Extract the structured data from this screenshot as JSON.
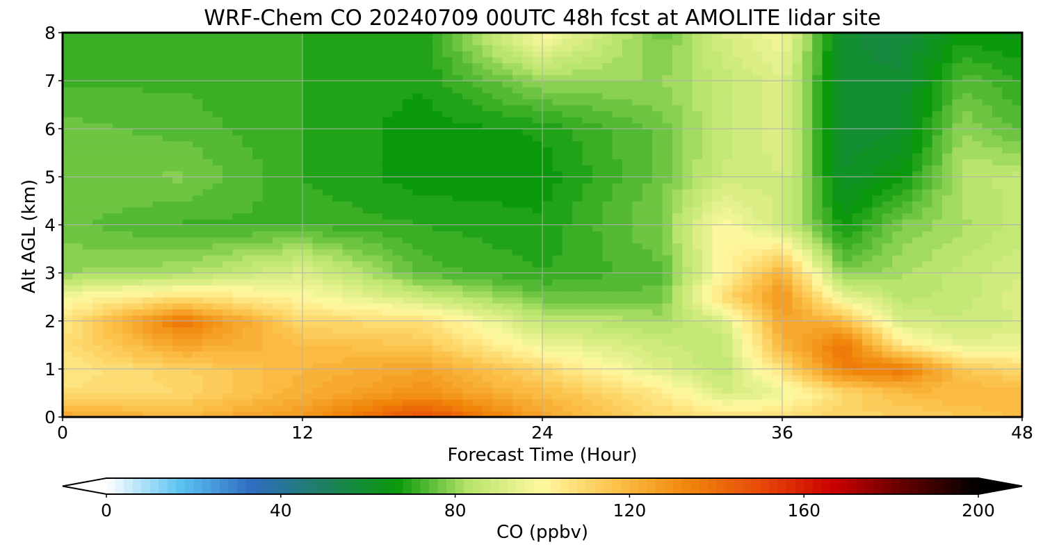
{
  "chart_data": {
    "type": "heatmap",
    "title": "WRF-Chem CO  20240709 00UTC 48h fcst at AMOLITE lidar site",
    "xlabel": "Forecast Time (Hour)",
    "ylabel": "Alt AGL (km)",
    "xlim": [
      0,
      48
    ],
    "ylim": [
      0,
      8
    ],
    "xticks": [
      "0",
      "12",
      "24",
      "36",
      "48"
    ],
    "yticks": [
      "0",
      "1",
      "2",
      "3",
      "4",
      "5",
      "6",
      "7",
      "8"
    ],
    "grid": true,
    "colorbar": {
      "label": "CO  (ppbv)",
      "range": [
        0,
        200
      ],
      "ticks": [
        "0",
        "40",
        "80",
        "120",
        "160",
        "200"
      ],
      "extend": "both",
      "orientation": "horizontal",
      "colors": [
        "#ffffff",
        "#5cc4f2",
        "#2f6cc0",
        "#1e8060",
        "#0a9a0a",
        "#b8e46c",
        "#fff8a0",
        "#fcc24a",
        "#f0860a",
        "#e84a08",
        "#cc0000",
        "#600000",
        "#000000"
      ]
    },
    "x": [
      0,
      6,
      12,
      18,
      24,
      30,
      33,
      36,
      39,
      42,
      45,
      48
    ],
    "y": [
      0,
      0.5,
      1,
      1.5,
      2,
      2.5,
      3,
      4,
      5,
      6,
      7,
      8
    ],
    "values": [
      [
        125,
        120,
        128,
        150,
        125,
        110,
        108,
        108,
        112,
        112,
        115,
        118
      ],
      [
        108,
        110,
        122,
        130,
        118,
        105,
        90,
        95,
        110,
        118,
        120,
        120
      ],
      [
        105,
        112,
        120,
        125,
        110,
        92,
        85,
        108,
        135,
        138,
        115,
        110
      ],
      [
        108,
        125,
        118,
        115,
        96,
        88,
        85,
        120,
        138,
        105,
        94,
        95
      ],
      [
        105,
        138,
        110,
        108,
        86,
        82,
        90,
        125,
        120,
        90,
        88,
        90
      ],
      [
        98,
        108,
        100,
        88,
        76,
        76,
        108,
        130,
        95,
        84,
        86,
        92
      ],
      [
        80,
        82,
        92,
        74,
        70,
        74,
        100,
        122,
        78,
        82,
        86,
        90
      ],
      [
        76,
        72,
        72,
        70,
        68,
        78,
        100,
        88,
        66,
        78,
        82,
        86
      ],
      [
        76,
        78,
        70,
        66,
        66,
        76,
        88,
        90,
        60,
        66,
        84,
        86
      ],
      [
        76,
        74,
        70,
        66,
        68,
        76,
        86,
        92,
        58,
        60,
        80,
        74
      ],
      [
        72,
        72,
        70,
        68,
        80,
        80,
        86,
        92,
        58,
        58,
        74,
        70
      ],
      [
        70,
        72,
        70,
        68,
        100,
        76,
        90,
        98,
        58,
        56,
        66,
        64
      ]
    ]
  }
}
